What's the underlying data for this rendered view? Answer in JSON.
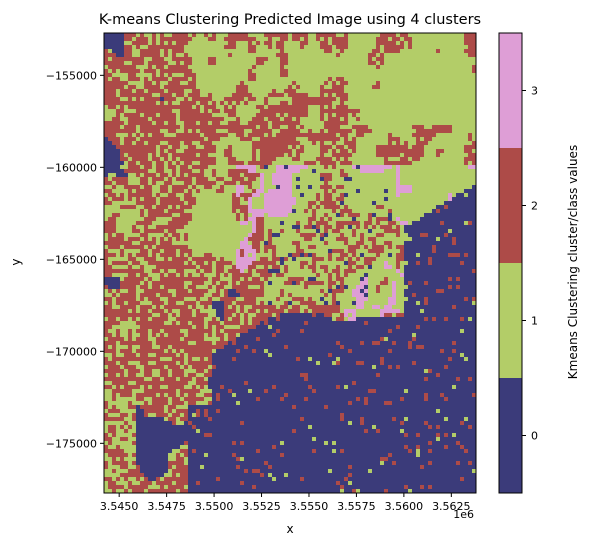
{
  "chart_data": {
    "type": "heatmap",
    "title": "K-means Clustering Predicted Image using 4 clusters",
    "xlabel": "x",
    "ylabel": "y",
    "x_offset_label": "1e6",
    "xlim": [
      3.5442,
      3.5638
    ],
    "ylim": [
      -177700,
      -152700
    ],
    "x_ticks": [
      {
        "value": 3.545,
        "label": "3.5450"
      },
      {
        "value": 3.5475,
        "label": "3.5475"
      },
      {
        "value": 3.55,
        "label": "3.5500"
      },
      {
        "value": 3.5525,
        "label": "3.5525"
      },
      {
        "value": 3.555,
        "label": "3.5550"
      },
      {
        "value": 3.5575,
        "label": "3.5575"
      },
      {
        "value": 3.56,
        "label": "3.5600"
      },
      {
        "value": 3.5625,
        "label": "3.5625"
      }
    ],
    "y_ticks": [
      {
        "value": -155000,
        "label": "−155000"
      },
      {
        "value": -160000,
        "label": "−160000"
      },
      {
        "value": -165000,
        "label": "−165000"
      },
      {
        "value": -170000,
        "label": "−170000"
      },
      {
        "value": -175000,
        "label": "−175000"
      }
    ],
    "colorbar": {
      "label": "Kmeans Clustering cluster/class values",
      "classes": [
        {
          "value": 0,
          "label": "0",
          "color": "#3b3b7a"
        },
        {
          "value": 1,
          "label": "1",
          "color": "#b3cd68"
        },
        {
          "value": 2,
          "label": "2",
          "color": "#ad4b48"
        },
        {
          "value": 3,
          "label": "3",
          "color": "#de9ed6"
        }
      ]
    },
    "grid": false
  }
}
